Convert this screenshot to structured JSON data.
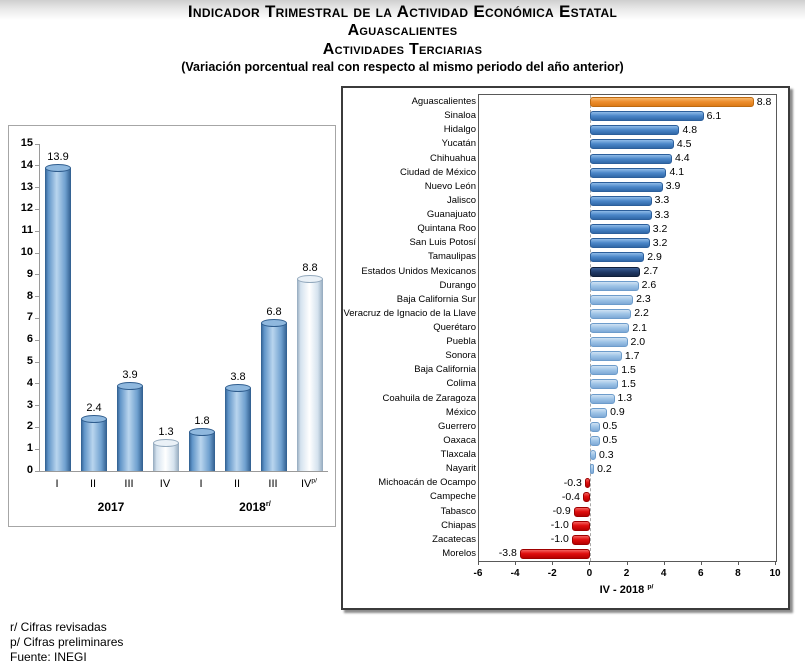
{
  "header": {
    "title_line1": "Indicador Trimestral de la Actividad Económica Estatal",
    "title_line2": "Aguascalientes",
    "title_line3": "Actividades Terciarias",
    "subtitle": "(Variación porcentual real con respecto al mismo periodo del año anterior)"
  },
  "footer": {
    "note_revised": "r/ Cifras revisadas",
    "note_preliminary": "p/ Cifras preliminares",
    "source": "Fuente: INEGI"
  },
  "palette": {
    "quarter_bar": "#4a86c8",
    "quarter_bar_light": "#ffffff",
    "highlight": "#ee8f2f",
    "state_above_national": "#4a86c8",
    "national": "#1f3864",
    "state_below_national": "#9dc3e6",
    "negative": "#e00e0e"
  },
  "chart_data": [
    {
      "type": "bar",
      "title": "",
      "xlabel": "",
      "ylabel": "",
      "ylim": [
        0,
        15
      ],
      "ytick_step": 1,
      "grid": false,
      "legend": "none",
      "categories": [
        "I",
        "II",
        "III",
        "IV",
        "I",
        "II",
        "III",
        "IV"
      ],
      "last_category_sup": "p/",
      "values": [
        13.9,
        2.4,
        3.9,
        1.3,
        1.8,
        3.8,
        6.8,
        8.8
      ],
      "bar_styles": [
        "blue",
        "blue",
        "blue",
        "light",
        "blue",
        "blue",
        "blue",
        "light"
      ],
      "year_groups": [
        {
          "label": "2017",
          "sup": "",
          "span": 4
        },
        {
          "label": "2018",
          "sup": "r/",
          "span": 4
        }
      ]
    },
    {
      "type": "bar-horizontal",
      "title": "",
      "xlabel": "IV - 2018",
      "xlabel_sup": "p/",
      "xlim": [
        -6,
        10
      ],
      "xticks": [
        -6,
        -4,
        -2,
        0,
        2,
        4,
        6,
        8,
        10
      ],
      "grid": false,
      "legend": "none",
      "rows": [
        {
          "name": "Aguascalientes",
          "value": 8.8,
          "style": "highlight"
        },
        {
          "name": "Sinaloa",
          "value": 6.1,
          "style": "above"
        },
        {
          "name": "Hidalgo",
          "value": 4.8,
          "style": "above"
        },
        {
          "name": "Yucatán",
          "value": 4.5,
          "style": "above"
        },
        {
          "name": "Chihuahua",
          "value": 4.4,
          "style": "above"
        },
        {
          "name": "Ciudad de México",
          "value": 4.1,
          "style": "above"
        },
        {
          "name": "Nuevo León",
          "value": 3.9,
          "style": "above"
        },
        {
          "name": "Jalisco",
          "value": 3.3,
          "style": "above"
        },
        {
          "name": "Guanajuato",
          "value": 3.3,
          "style": "above"
        },
        {
          "name": "Quintana Roo",
          "value": 3.2,
          "style": "above"
        },
        {
          "name": "San Luis Potosí",
          "value": 3.2,
          "style": "above"
        },
        {
          "name": "Tamaulipas",
          "value": 2.9,
          "style": "above"
        },
        {
          "name": "Estados Unidos Mexicanos",
          "value": 2.7,
          "style": "national"
        },
        {
          "name": "Durango",
          "value": 2.6,
          "style": "below"
        },
        {
          "name": "Baja California Sur",
          "value": 2.3,
          "style": "below"
        },
        {
          "name": "Veracruz de Ignacio de la Llave",
          "value": 2.2,
          "style": "below"
        },
        {
          "name": "Querétaro",
          "value": 2.1,
          "style": "below"
        },
        {
          "name": "Puebla",
          "value": 2.0,
          "style": "below"
        },
        {
          "name": "Sonora",
          "value": 1.7,
          "style": "below"
        },
        {
          "name": "Baja California",
          "value": 1.5,
          "style": "below"
        },
        {
          "name": "Colima",
          "value": 1.5,
          "style": "below"
        },
        {
          "name": "Coahuila de Zaragoza",
          "value": 1.3,
          "style": "below"
        },
        {
          "name": "México",
          "value": 0.9,
          "style": "below"
        },
        {
          "name": "Guerrero",
          "value": 0.5,
          "style": "below"
        },
        {
          "name": "Oaxaca",
          "value": 0.5,
          "style": "below"
        },
        {
          "name": "Tlaxcala",
          "value": 0.3,
          "style": "below"
        },
        {
          "name": "Nayarit",
          "value": 0.2,
          "style": "below"
        },
        {
          "name": "Michoacán de Ocampo",
          "value": -0.3,
          "style": "negative"
        },
        {
          "name": "Campeche",
          "value": -0.4,
          "style": "negative"
        },
        {
          "name": "Tabasco",
          "value": -0.9,
          "style": "negative"
        },
        {
          "name": "Chiapas",
          "value": -1.0,
          "style": "negative"
        },
        {
          "name": "Zacatecas",
          "value": -1.0,
          "style": "negative"
        },
        {
          "name": "Morelos",
          "value": -3.8,
          "style": "negative"
        }
      ]
    }
  ]
}
